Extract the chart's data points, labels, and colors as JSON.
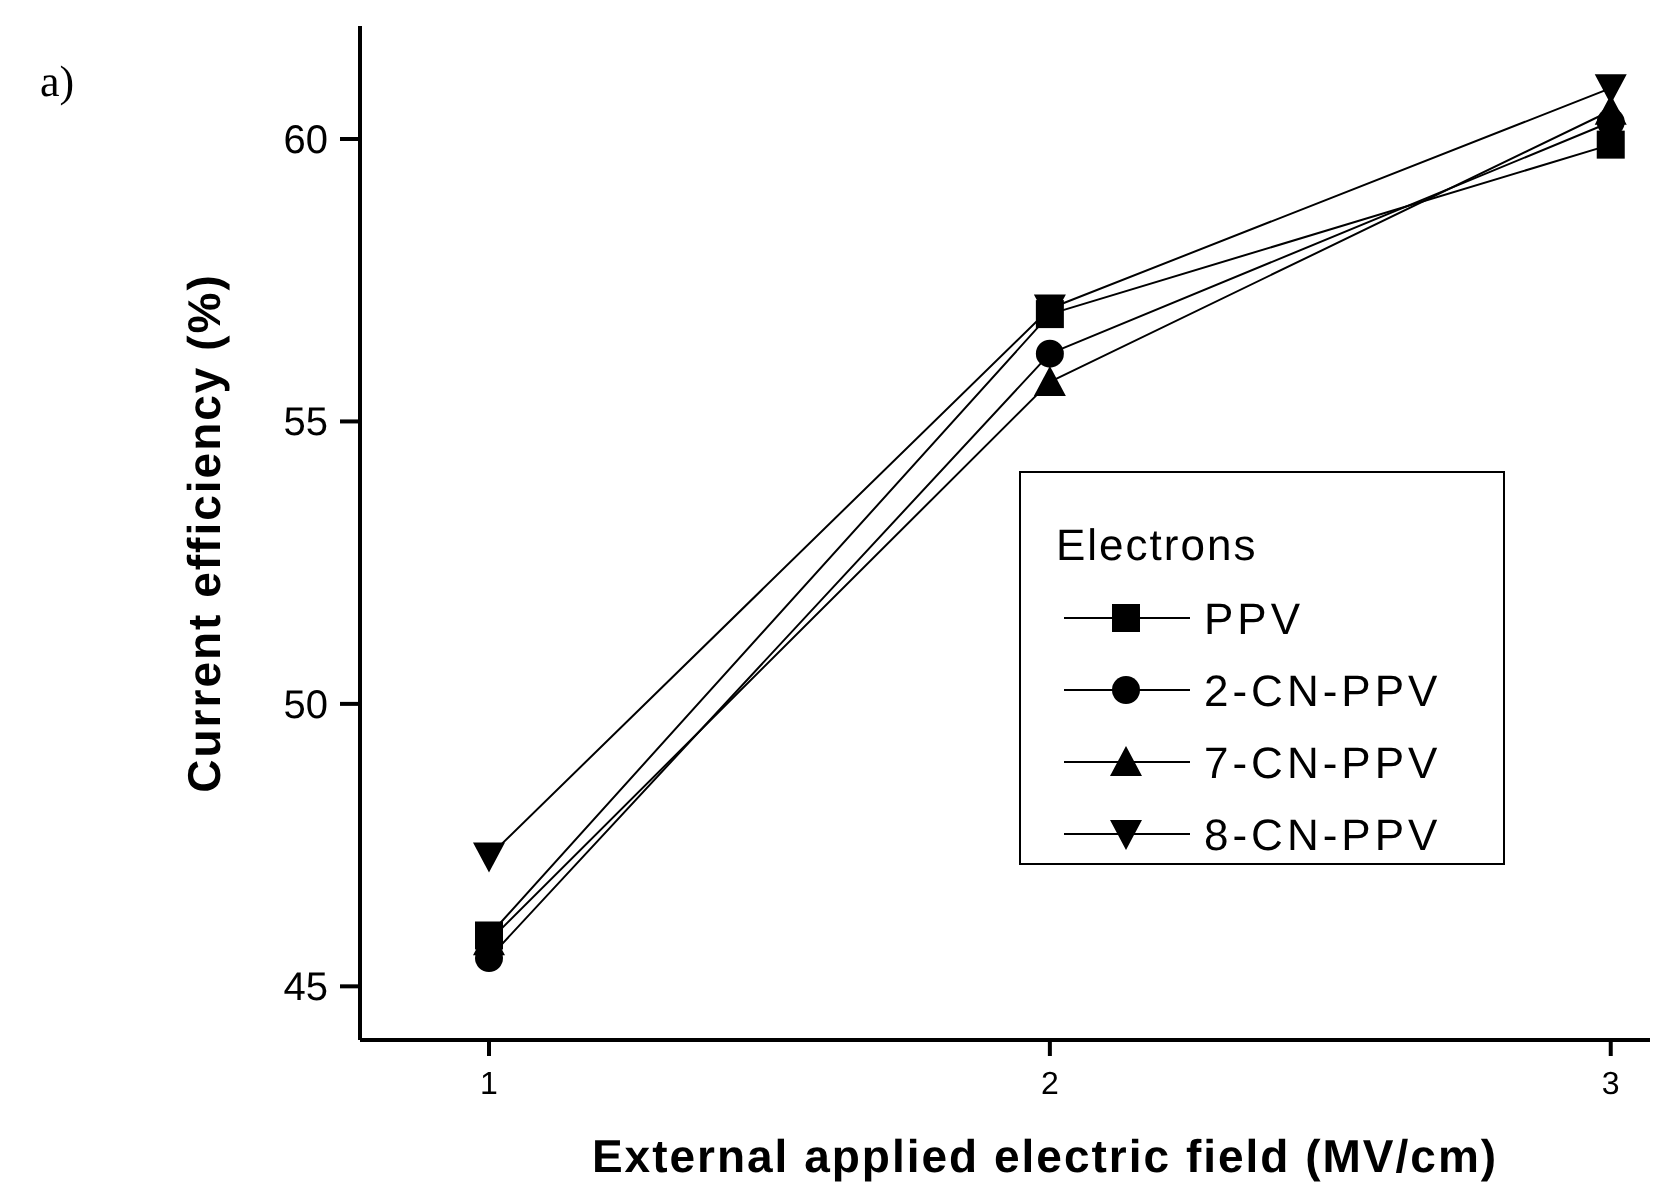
{
  "chart_data": {
    "type": "line",
    "xlabel": "External applied electric field (MV/cm)",
    "ylabel": "Current efficiency (%)",
    "legend_title": "Electrons",
    "annotations": [
      "a)"
    ],
    "x": [
      1,
      2,
      3
    ],
    "xlim": [
      0.77,
      3.07
    ],
    "xticks": [
      1,
      2,
      3
    ],
    "ylim": [
      44.05,
      62
    ],
    "yticks": [
      45,
      50,
      55,
      60
    ],
    "grid": false,
    "legend": "bottom right",
    "series": [
      {
        "name": "PPV",
        "color": "#000000",
        "marker": "square",
        "values": [
          45.9,
          56.9,
          59.9
        ]
      },
      {
        "name": "2-CN-PPV",
        "color": "#000000",
        "marker": "circle",
        "values": [
          45.5,
          56.2,
          60.3
        ]
      },
      {
        "name": "7-CN-PPV",
        "color": "#000000",
        "marker": "triangle",
        "values": [
          45.8,
          55.7,
          60.5
        ]
      },
      {
        "name": "8-CN-PPV",
        "color": "#000000",
        "marker": "triangle-down",
        "values": [
          47.3,
          57.0,
          60.9
        ]
      }
    ]
  }
}
